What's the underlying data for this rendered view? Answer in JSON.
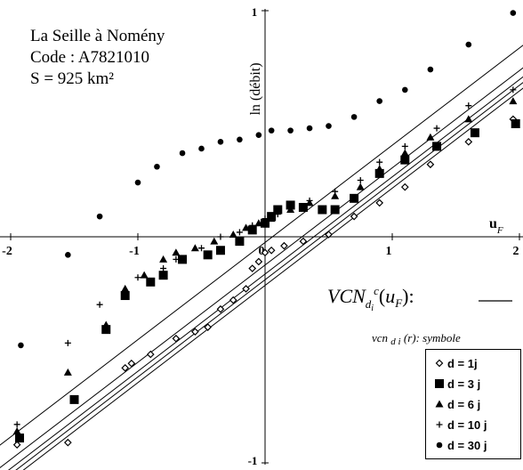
{
  "station": {
    "line1": "La Seille à Nomény",
    "line2": "Code : A7821010",
    "line3": "S = 925 km²"
  },
  "chart_data": {
    "type": "scatter",
    "xlabel": "uF",
    "ylabel": "ln (débit)",
    "xlim": [
      -2,
      2
    ],
    "ylim": [
      -1,
      1
    ],
    "xticks": [
      "-2",
      "-1",
      "0",
      "1",
      "2"
    ],
    "yticks": [
      "-1",
      "1"
    ],
    "grid": false,
    "legend_placement": "bottom-right",
    "fit_lines_label": {
      "base": "VCN",
      "sub": "di",
      "sup": "c",
      "arg": "(uF):",
      "symbol_desc": "vcn di (r): symbole"
    },
    "fit_lines": [
      {
        "name": "d = 1j",
        "intercept": -0.215,
        "slope": 0.43
      },
      {
        "name": "d = 3 j",
        "intercept": -0.19,
        "slope": 0.43
      },
      {
        "name": "d = 6 j",
        "intercept": -0.165,
        "slope": 0.43
      },
      {
        "name": "d = 10 j",
        "intercept": -0.125,
        "slope": 0.43
      },
      {
        "name": "d = 30 j",
        "intercept": -0.025,
        "slope": 0.43
      }
    ],
    "series": [
      {
        "name": "d = 1j",
        "marker": "diamond",
        "points": [
          [
            -1.95,
            -0.92
          ],
          [
            -1.55,
            -0.91
          ],
          [
            -1.1,
            -0.58
          ],
          [
            -1.05,
            -0.56
          ],
          [
            -0.9,
            -0.52
          ],
          [
            -0.7,
            -0.45
          ],
          [
            -0.55,
            -0.42
          ],
          [
            -0.45,
            -0.4
          ],
          [
            -0.35,
            -0.32
          ],
          [
            -0.25,
            -0.28
          ],
          [
            -0.15,
            -0.23
          ],
          [
            -0.1,
            -0.14
          ],
          [
            -0.05,
            -0.11
          ],
          [
            0.0,
            -0.07
          ],
          [
            0.05,
            -0.06
          ],
          [
            0.15,
            -0.04
          ],
          [
            0.3,
            -0.02
          ],
          [
            0.5,
            0.01
          ],
          [
            0.7,
            0.09
          ],
          [
            0.9,
            0.15
          ],
          [
            1.1,
            0.22
          ],
          [
            1.3,
            0.32
          ],
          [
            1.6,
            0.42
          ],
          [
            1.95,
            0.52
          ]
        ]
      },
      {
        "name": "d = 3 j",
        "marker": "square",
        "points": [
          [
            -1.93,
            -0.89
          ],
          [
            -1.5,
            -0.72
          ],
          [
            -1.25,
            -0.41
          ],
          [
            -1.1,
            -0.26
          ],
          [
            -0.9,
            -0.2
          ],
          [
            -0.8,
            -0.17
          ],
          [
            -0.65,
            -0.1
          ],
          [
            -0.45,
            -0.08
          ],
          [
            -0.35,
            -0.06
          ],
          [
            -0.2,
            -0.02
          ],
          [
            -0.1,
            0.03
          ],
          [
            0.0,
            0.06
          ],
          [
            0.05,
            0.09
          ],
          [
            0.1,
            0.12
          ],
          [
            0.2,
            0.14
          ],
          [
            0.3,
            0.13
          ],
          [
            0.45,
            0.12
          ],
          [
            0.55,
            0.12
          ],
          [
            0.7,
            0.17
          ],
          [
            0.9,
            0.28
          ],
          [
            1.1,
            0.34
          ],
          [
            1.35,
            0.4
          ],
          [
            1.65,
            0.46
          ],
          [
            1.97,
            0.5
          ]
        ]
      },
      {
        "name": "d = 6 j",
        "marker": "triangle",
        "points": [
          [
            -1.95,
            -0.86
          ],
          [
            -1.55,
            -0.6
          ],
          [
            -1.25,
            -0.39
          ],
          [
            -1.1,
            -0.23
          ],
          [
            -0.95,
            -0.17
          ],
          [
            -0.8,
            -0.1
          ],
          [
            -0.7,
            -0.07
          ],
          [
            -0.55,
            -0.05
          ],
          [
            -0.4,
            -0.02
          ],
          [
            -0.25,
            0.01
          ],
          [
            -0.15,
            0.04
          ],
          [
            -0.05,
            0.06
          ],
          [
            0.05,
            0.08
          ],
          [
            0.2,
            0.12
          ],
          [
            0.35,
            0.15
          ],
          [
            0.55,
            0.18
          ],
          [
            0.75,
            0.22
          ],
          [
            0.9,
            0.3
          ],
          [
            1.1,
            0.37
          ],
          [
            1.3,
            0.44
          ],
          [
            1.6,
            0.52
          ],
          [
            1.95,
            0.6
          ]
        ]
      },
      {
        "name": "d = 10 j",
        "marker": "plus",
        "points": [
          [
            -1.95,
            -0.83
          ],
          [
            -1.55,
            -0.47
          ],
          [
            -1.3,
            -0.3
          ],
          [
            -1.0,
            -0.18
          ],
          [
            -0.8,
            -0.14
          ],
          [
            -0.7,
            -0.1
          ],
          [
            -0.5,
            -0.05
          ],
          [
            -0.35,
            0.0
          ],
          [
            -0.2,
            0.02
          ],
          [
            -0.1,
            0.05
          ],
          [
            0.0,
            0.08
          ],
          [
            0.1,
            0.1
          ],
          [
            0.2,
            0.13
          ],
          [
            0.35,
            0.16
          ],
          [
            0.55,
            0.2
          ],
          [
            0.75,
            0.25
          ],
          [
            0.9,
            0.33
          ],
          [
            1.1,
            0.4
          ],
          [
            1.35,
            0.48
          ],
          [
            1.6,
            0.58
          ],
          [
            1.95,
            0.65
          ]
        ]
      },
      {
        "name": "d = 30 j",
        "marker": "dot",
        "points": [
          [
            -1.92,
            -0.48
          ],
          [
            -1.55,
            -0.08
          ],
          [
            -1.3,
            0.09
          ],
          [
            -1.0,
            0.24
          ],
          [
            -0.85,
            0.31
          ],
          [
            -0.65,
            0.37
          ],
          [
            -0.5,
            0.39
          ],
          [
            -0.35,
            0.42
          ],
          [
            -0.2,
            0.43
          ],
          [
            -0.05,
            0.45
          ],
          [
            0.05,
            0.47
          ],
          [
            0.2,
            0.47
          ],
          [
            0.35,
            0.48
          ],
          [
            0.5,
            0.49
          ],
          [
            0.7,
            0.53
          ],
          [
            0.9,
            0.6
          ],
          [
            1.1,
            0.65
          ],
          [
            1.3,
            0.74
          ],
          [
            1.6,
            0.85
          ],
          [
            1.95,
            0.99
          ]
        ]
      }
    ]
  }
}
